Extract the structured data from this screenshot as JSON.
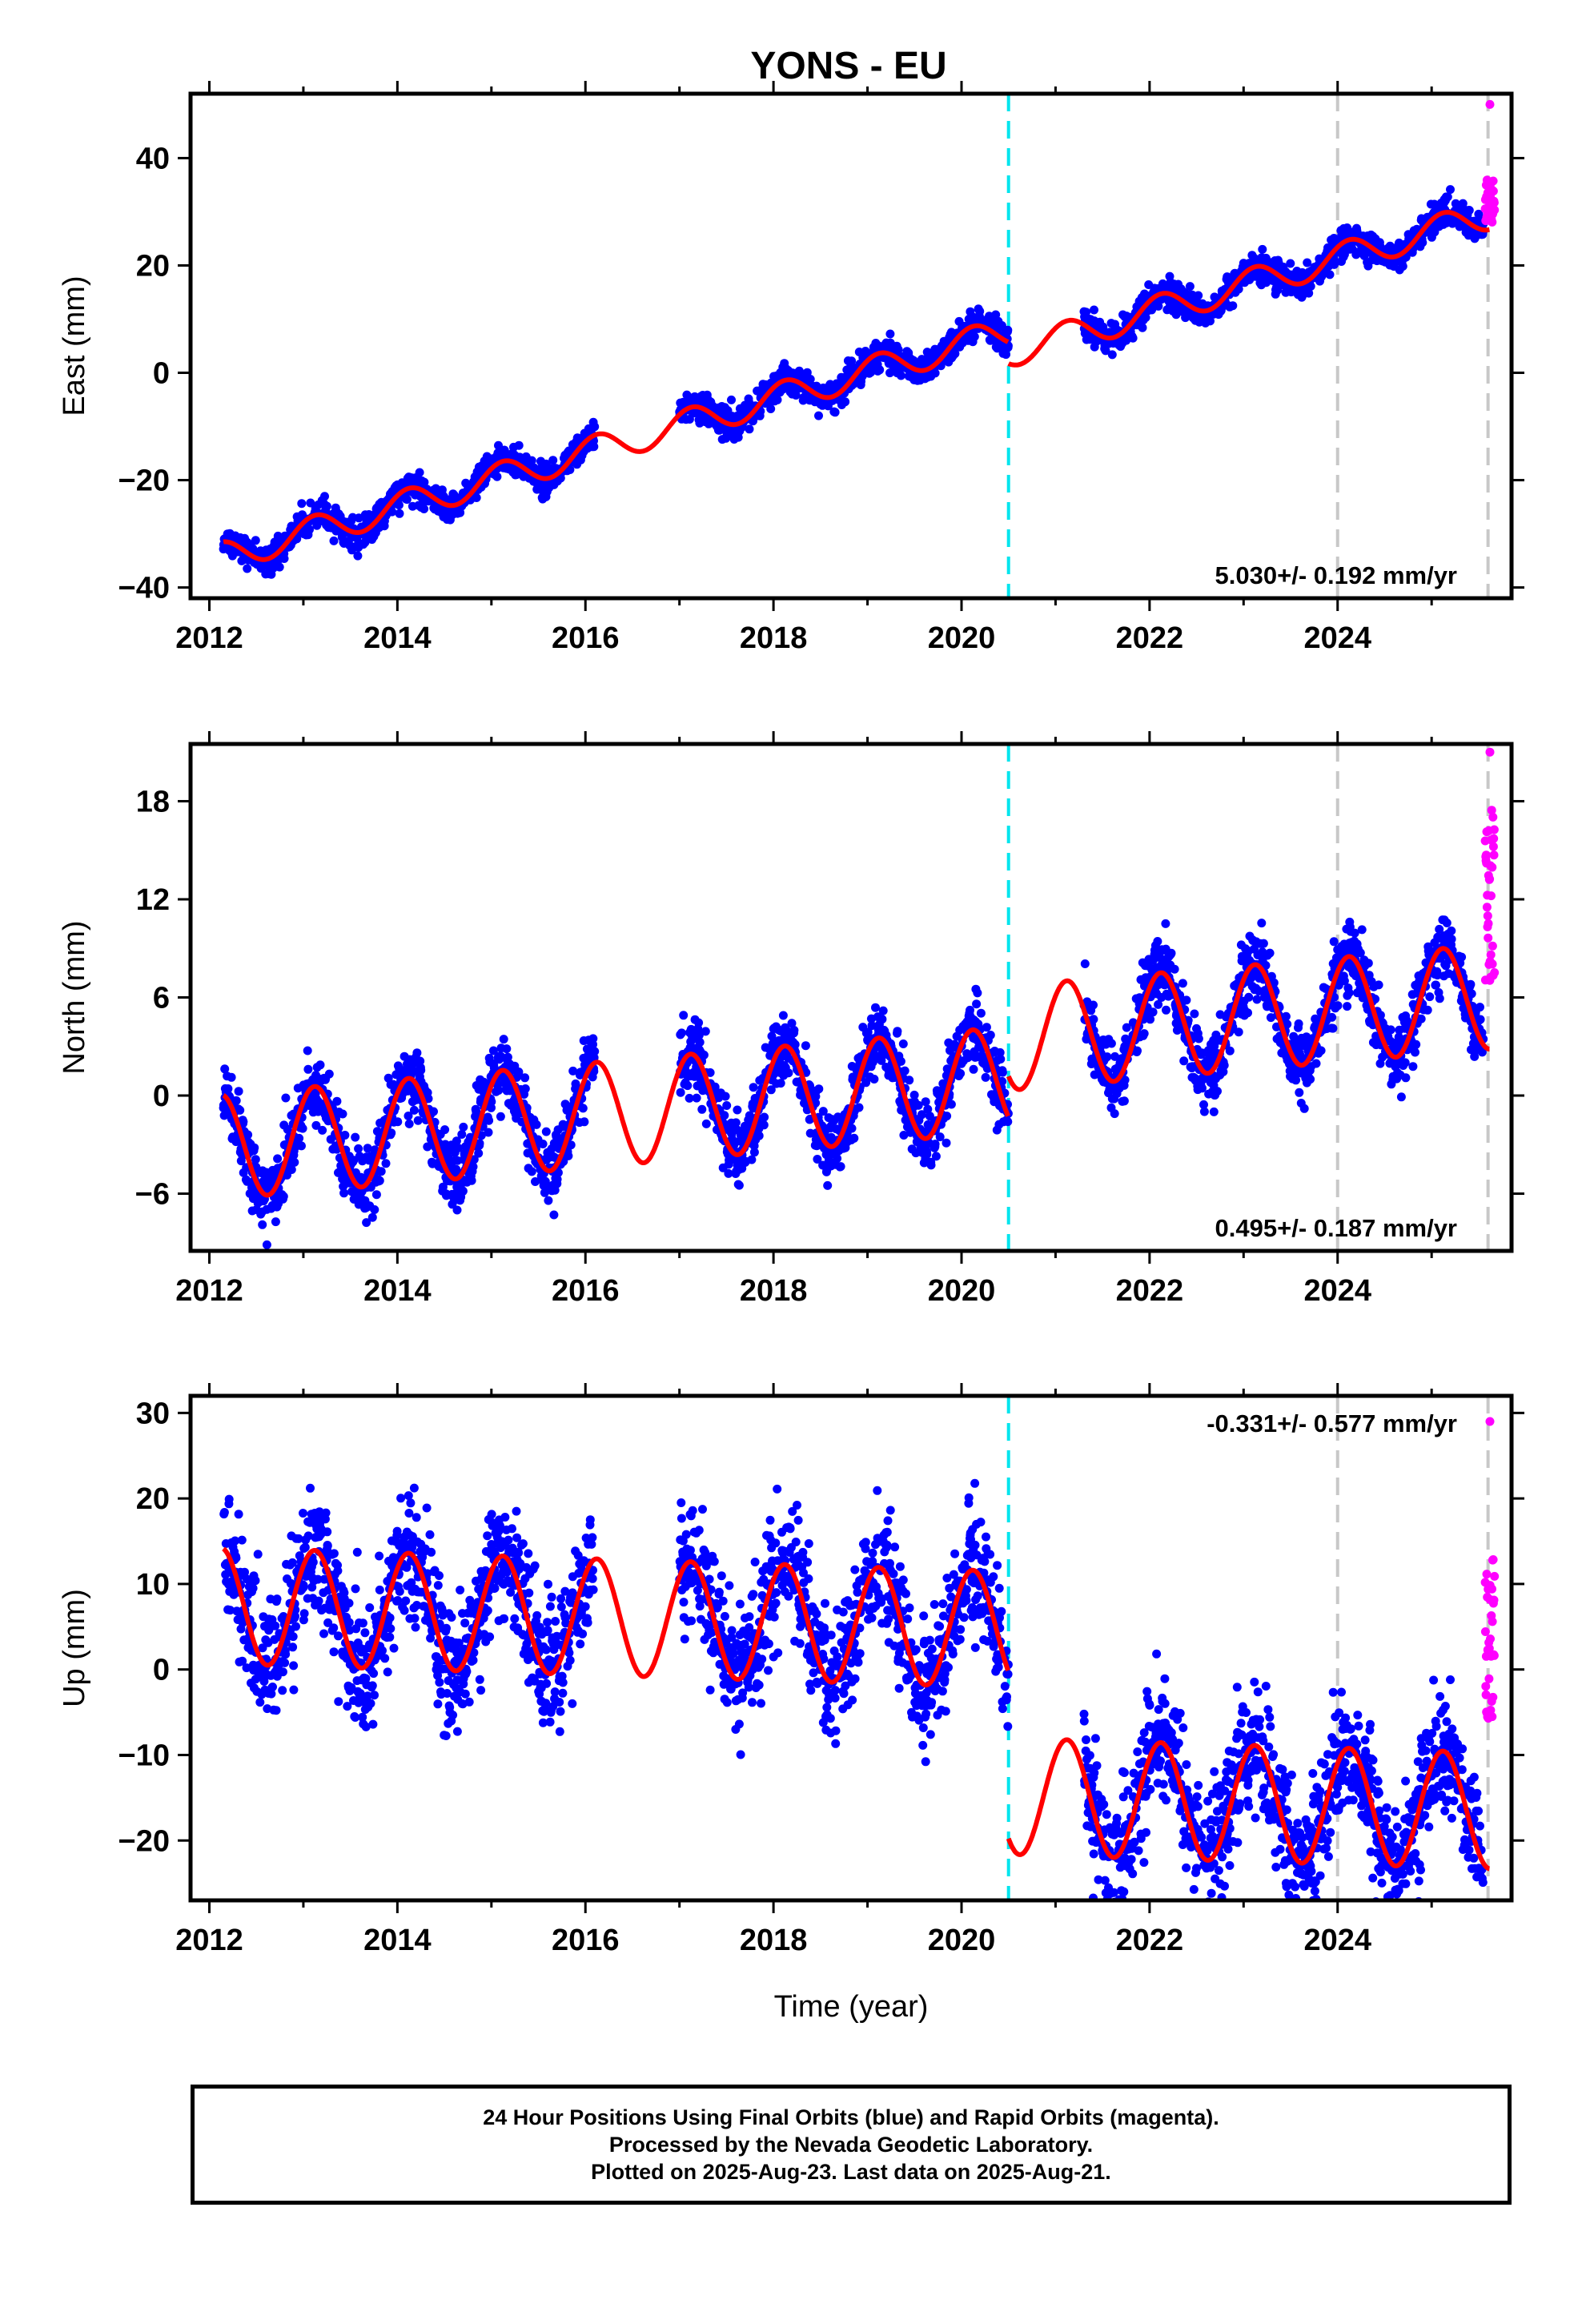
{
  "title": "YONS - EU",
  "xlabel": "Time (year)",
  "colors": {
    "final": "#0000ff",
    "rapid": "#ff00ff",
    "model": "#ff0000",
    "offset_line": "#00e5ee",
    "dashed_line": "#c8c8c8"
  },
  "chart_data": [
    {
      "type": "scatter",
      "ylabel": "East (mm)",
      "ylim": [
        -42,
        52
      ],
      "xlim": [
        2011.8,
        2025.85
      ],
      "yticks": [
        -40,
        -20,
        0,
        20,
        40
      ],
      "xticks": [
        2012,
        2014,
        2016,
        2018,
        2020,
        2022,
        2024
      ],
      "velocity": "5.030+/- 0.192 mm/yr",
      "velocity_pos": "bottom-right",
      "rate": 5.03,
      "base": -35,
      "amp": 2.8,
      "offset_year": 2020.5,
      "offset_jump": -4.0,
      "noise": 1.3,
      "rapid_range": [
        28,
        36
      ],
      "rapid_max": 50,
      "gap": [
        2016.1,
        2017.0
      ],
      "gap2": [
        2020.5,
        2021.3
      ],
      "start": 2012.15,
      "dashed_years": [
        2024.0,
        2025.6
      ]
    },
    {
      "type": "scatter",
      "ylabel": "North (mm)",
      "ylim": [
        -9.5,
        21.5
      ],
      "xlim": [
        2011.8,
        2025.85
      ],
      "yticks": [
        -6,
        0,
        6,
        12,
        18
      ],
      "xticks": [
        2012,
        2014,
        2016,
        2018,
        2020,
        2022,
        2024
      ],
      "velocity": "0.495+/- 0.187 mm/yr",
      "velocity_pos": "bottom-right",
      "rate": 0.495,
      "base": -3.2,
      "amp": 3.2,
      "offset_year": 2020.5,
      "offset_jump": 2.5,
      "noise": 1.0,
      "rapid_range": [
        7,
        17.5
      ],
      "rapid_max": 21,
      "gap": [
        2016.1,
        2017.0
      ],
      "gap2": [
        2020.5,
        2021.3
      ],
      "start": 2012.15,
      "dashed_years": [
        2024.0,
        2025.6
      ]
    },
    {
      "type": "scatter",
      "ylabel": "Up (mm)",
      "ylim": [
        -27,
        32
      ],
      "xlim": [
        2011.8,
        2025.85
      ],
      "yticks": [
        -20,
        -10,
        0,
        10,
        20,
        30
      ],
      "xticks": [
        2012,
        2014,
        2016,
        2018,
        2020,
        2022,
        2024
      ],
      "velocity": "-0.331+/- 0.577 mm/yr",
      "velocity_pos": "top-right",
      "rate": -0.331,
      "base": 7.5,
      "amp": 6.8,
      "offset_year": 2020.5,
      "offset_jump": -19.5,
      "noise": 3.5,
      "rapid_range": [
        -6,
        13
      ],
      "rapid_max": 29,
      "gap": [
        2016.1,
        2017.0
      ],
      "gap2": [
        2020.5,
        2021.3
      ],
      "start": 2012.15,
      "dashed_years": [
        2024.0,
        2025.6
      ]
    }
  ],
  "footer": {
    "line1": "24 Hour Positions Using Final Orbits (blue) and Rapid Orbits (magenta).",
    "line2": "Processed by the Nevada Geodetic Laboratory.",
    "line3": "Plotted on 2025-Aug-23. Last data on 2025-Aug-21."
  }
}
